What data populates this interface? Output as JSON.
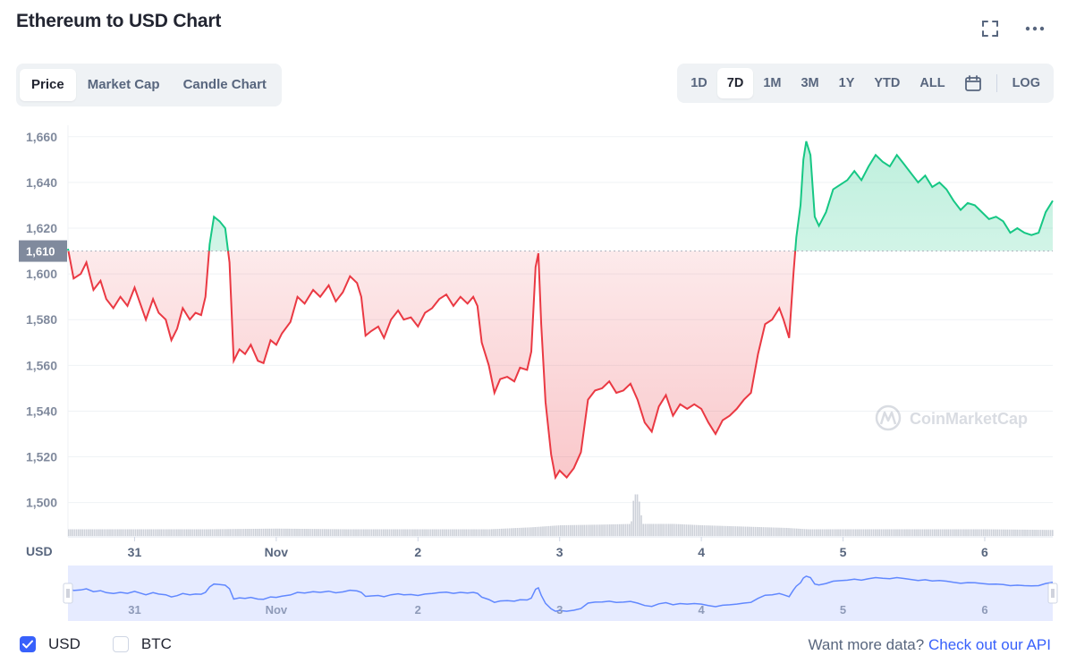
{
  "title": "Ethereum to USD Chart",
  "icons": {
    "fullscreen": "fullscreen-icon",
    "more": "more-icon",
    "calendar": "calendar-icon",
    "checkmark": "checkmark-icon",
    "watermark": "coinmarketcap-logo"
  },
  "chart_tabs": [
    "Price",
    "Market Cap",
    "Candle Chart"
  ],
  "active_chart_tab": "Price",
  "range_buttons": [
    "1D",
    "7D",
    "1M",
    "3M",
    "1Y",
    "YTD",
    "ALL"
  ],
  "active_range": "7D",
  "log_label": "LOG",
  "currency_label": "USD",
  "watermark_text": "CoinMarketCap",
  "legend": [
    {
      "label": "USD",
      "checked": true
    },
    {
      "label": "BTC",
      "checked": false
    }
  ],
  "api_prompt": "Want more data?",
  "api_link": "Check out our API",
  "colors": {
    "up": "#16c784",
    "down": "#ea3943",
    "accent": "#3861fb",
    "grid": "#eff2f5"
  },
  "chart_data": {
    "type": "area",
    "ylabel": "USD",
    "ylim": [
      1485,
      1665
    ],
    "yticks": [
      1500,
      1520,
      1540,
      1560,
      1580,
      1600,
      1620,
      1640,
      1660
    ],
    "baseline": 1610,
    "baseline_label": "1,610",
    "xlim": [
      30.53,
      37.48
    ],
    "xticks": [
      {
        "x": 31,
        "label": "31"
      },
      {
        "x": 32,
        "label": "Nov"
      },
      {
        "x": 33,
        "label": "2"
      },
      {
        "x": 34,
        "label": "3"
      },
      {
        "x": 35,
        "label": "4"
      },
      {
        "x": 36,
        "label": "5"
      },
      {
        "x": 37,
        "label": "6"
      }
    ],
    "price": [
      [
        30.53,
        1611
      ],
      [
        30.57,
        1598
      ],
      [
        30.62,
        1600
      ],
      [
        30.66,
        1605
      ],
      [
        30.71,
        1593
      ],
      [
        30.76,
        1597
      ],
      [
        30.8,
        1589
      ],
      [
        30.85,
        1585
      ],
      [
        30.9,
        1590
      ],
      [
        30.95,
        1586
      ],
      [
        31.0,
        1594
      ],
      [
        31.04,
        1587
      ],
      [
        31.08,
        1580
      ],
      [
        31.13,
        1589
      ],
      [
        31.17,
        1583
      ],
      [
        31.22,
        1580
      ],
      [
        31.26,
        1571
      ],
      [
        31.3,
        1576
      ],
      [
        31.34,
        1585
      ],
      [
        31.39,
        1580
      ],
      [
        31.43,
        1583
      ],
      [
        31.47,
        1582
      ],
      [
        31.5,
        1590
      ],
      [
        31.53,
        1613
      ],
      [
        31.56,
        1625
      ],
      [
        31.6,
        1623
      ],
      [
        31.64,
        1620
      ],
      [
        31.67,
        1605
      ],
      [
        31.7,
        1562
      ],
      [
        31.74,
        1567
      ],
      [
        31.78,
        1565
      ],
      [
        31.82,
        1569
      ],
      [
        31.87,
        1562
      ],
      [
        31.91,
        1561
      ],
      [
        31.96,
        1571
      ],
      [
        32.0,
        1569
      ],
      [
        32.04,
        1574
      ],
      [
        32.1,
        1579
      ],
      [
        32.15,
        1590
      ],
      [
        32.2,
        1587
      ],
      [
        32.26,
        1593
      ],
      [
        32.31,
        1590
      ],
      [
        32.37,
        1595
      ],
      [
        32.42,
        1588
      ],
      [
        32.47,
        1592
      ],
      [
        32.52,
        1599
      ],
      [
        32.57,
        1596
      ],
      [
        32.6,
        1590
      ],
      [
        32.63,
        1573
      ],
      [
        32.67,
        1575
      ],
      [
        32.72,
        1577
      ],
      [
        32.76,
        1572
      ],
      [
        32.81,
        1580
      ],
      [
        32.86,
        1584
      ],
      [
        32.9,
        1580
      ],
      [
        32.95,
        1581
      ],
      [
        33.0,
        1577
      ],
      [
        33.05,
        1583
      ],
      [
        33.1,
        1585
      ],
      [
        33.15,
        1589
      ],
      [
        33.2,
        1591
      ],
      [
        33.25,
        1586
      ],
      [
        33.3,
        1590
      ],
      [
        33.35,
        1587
      ],
      [
        33.39,
        1590
      ],
      [
        33.42,
        1586
      ],
      [
        33.45,
        1570
      ],
      [
        33.5,
        1560
      ],
      [
        33.54,
        1548
      ],
      [
        33.58,
        1554
      ],
      [
        33.63,
        1555
      ],
      [
        33.68,
        1553
      ],
      [
        33.72,
        1559
      ],
      [
        33.77,
        1558
      ],
      [
        33.8,
        1566
      ],
      [
        33.83,
        1603
      ],
      [
        33.85,
        1609
      ],
      [
        33.87,
        1578
      ],
      [
        33.9,
        1544
      ],
      [
        33.94,
        1521
      ],
      [
        33.97,
        1511
      ],
      [
        34.0,
        1514
      ],
      [
        34.05,
        1511
      ],
      [
        34.1,
        1515
      ],
      [
        34.15,
        1522
      ],
      [
        34.2,
        1545
      ],
      [
        34.25,
        1549
      ],
      [
        34.3,
        1550
      ],
      [
        34.35,
        1553
      ],
      [
        34.4,
        1548
      ],
      [
        34.45,
        1549
      ],
      [
        34.5,
        1552
      ],
      [
        34.55,
        1545
      ],
      [
        34.6,
        1535
      ],
      [
        34.65,
        1531
      ],
      [
        34.7,
        1542
      ],
      [
        34.75,
        1547
      ],
      [
        34.8,
        1538
      ],
      [
        34.85,
        1543
      ],
      [
        34.9,
        1541
      ],
      [
        34.95,
        1543
      ],
      [
        35.0,
        1541
      ],
      [
        35.05,
        1535
      ],
      [
        35.1,
        1530
      ],
      [
        35.15,
        1536
      ],
      [
        35.2,
        1538
      ],
      [
        35.25,
        1541
      ],
      [
        35.3,
        1545
      ],
      [
        35.35,
        1548
      ],
      [
        35.4,
        1565
      ],
      [
        35.45,
        1578
      ],
      [
        35.5,
        1580
      ],
      [
        35.55,
        1585
      ],
      [
        35.58,
        1580
      ],
      [
        35.62,
        1572
      ],
      [
        35.65,
        1600
      ],
      [
        35.67,
        1616
      ],
      [
        35.7,
        1630
      ],
      [
        35.72,
        1650
      ],
      [
        35.74,
        1658
      ],
      [
        35.77,
        1652
      ],
      [
        35.8,
        1625
      ],
      [
        35.83,
        1621
      ],
      [
        35.88,
        1627
      ],
      [
        35.93,
        1637
      ],
      [
        35.98,
        1639
      ],
      [
        36.03,
        1641
      ],
      [
        36.08,
        1645
      ],
      [
        36.13,
        1641
      ],
      [
        36.18,
        1647
      ],
      [
        36.23,
        1652
      ],
      [
        36.28,
        1649
      ],
      [
        36.33,
        1647
      ],
      [
        36.38,
        1652
      ],
      [
        36.43,
        1648
      ],
      [
        36.48,
        1644
      ],
      [
        36.53,
        1640
      ],
      [
        36.58,
        1643
      ],
      [
        36.63,
        1638
      ],
      [
        36.68,
        1640
      ],
      [
        36.73,
        1637
      ],
      [
        36.78,
        1632
      ],
      [
        36.83,
        1628
      ],
      [
        36.88,
        1631
      ],
      [
        36.93,
        1630
      ],
      [
        36.98,
        1627
      ],
      [
        37.03,
        1624
      ],
      [
        37.08,
        1625
      ],
      [
        37.13,
        1623
      ],
      [
        37.18,
        1618
      ],
      [
        37.23,
        1620
      ],
      [
        37.28,
        1618
      ],
      [
        37.33,
        1617
      ],
      [
        37.38,
        1618
      ],
      [
        37.43,
        1627
      ],
      [
        37.48,
        1632
      ]
    ],
    "volume": [
      [
        30.53,
        0.1
      ],
      [
        31.0,
        0.1
      ],
      [
        31.5,
        0.1
      ],
      [
        32.0,
        0.11
      ],
      [
        32.5,
        0.1
      ],
      [
        33.0,
        0.1
      ],
      [
        33.5,
        0.1
      ],
      [
        33.8,
        0.13
      ],
      [
        34.0,
        0.16
      ],
      [
        34.3,
        0.17
      ],
      [
        34.5,
        0.18
      ],
      [
        34.52,
        0.62
      ],
      [
        34.55,
        0.62
      ],
      [
        34.58,
        0.18
      ],
      [
        34.8,
        0.18
      ],
      [
        35.0,
        0.16
      ],
      [
        35.3,
        0.14
      ],
      [
        35.6,
        0.12
      ],
      [
        35.75,
        0.1
      ],
      [
        36.0,
        0.1
      ],
      [
        36.5,
        0.1
      ],
      [
        37.0,
        0.1
      ],
      [
        37.48,
        0.09
      ]
    ]
  }
}
